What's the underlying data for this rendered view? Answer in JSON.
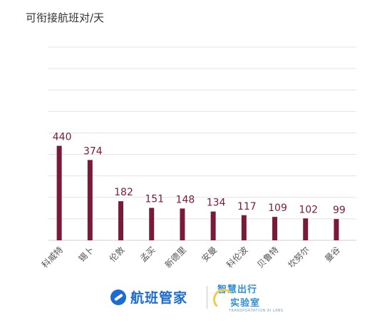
{
  "chart_data": {
    "type": "bar",
    "title": "可衔接航班对/天",
    "categories": [
      "科威特",
      "锡卜",
      "伦敦",
      "孟买",
      "新德里",
      "安曼",
      "科伦波",
      "贝鲁特",
      "坎努尔",
      "曼谷"
    ],
    "values": [
      440,
      374,
      182,
      151,
      148,
      134,
      117,
      109,
      102,
      99
    ],
    "ylim": [
      0,
      900
    ],
    "grid": true,
    "legend": "none",
    "bar_color": "#7a1a3a",
    "label_color": "#7a1a3a"
  },
  "footer": {
    "logo1_text": "航班管家",
    "logo2_line1": "智慧出行",
    "logo2_line2": "实验室",
    "logo2_small": "TRANSPORTATION AI LABS",
    "logo1_icon": "plane-globe-icon",
    "logo2_icon": "swoosh-icon"
  }
}
